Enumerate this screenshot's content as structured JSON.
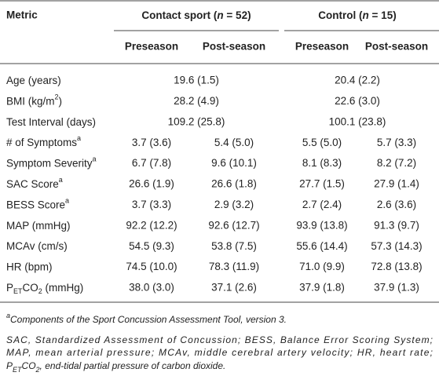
{
  "table": {
    "header": {
      "metric": "Metric",
      "groups": [
        [
          {
            "t": "Contact sport ("
          },
          {
            "t": "n",
            "style": "italic"
          },
          {
            "t": " = 52)"
          }
        ],
        [
          {
            "t": "Control ("
          },
          {
            "t": "n",
            "style": "italic"
          },
          {
            "t": " = 15)"
          }
        ]
      ],
      "subheaders": [
        "Preseason",
        "Post-season",
        "Preseason",
        "Post-season"
      ]
    },
    "rows": [
      {
        "label": [
          {
            "t": "Age (years)"
          }
        ],
        "values": [
          "19.6 (1.5)",
          "20.4 (2.2)"
        ]
      },
      {
        "label": [
          {
            "t": "BMI (kg/m"
          },
          {
            "t": "2",
            "style": "sup"
          },
          {
            "t": ")"
          }
        ],
        "values": [
          "28.2 (4.9)",
          "22.6 (3.0)"
        ]
      },
      {
        "label": [
          {
            "t": "Test Interval (days)"
          }
        ],
        "values": [
          "109.2 (25.8)",
          "100.1 (23.8)"
        ]
      },
      {
        "label": [
          {
            "t": "# of Symptoms"
          },
          {
            "t": "a",
            "style": "sup"
          }
        ],
        "values": [
          "3.7 (3.6)",
          "5.4 (5.0)",
          "5.5 (5.0)",
          "5.7 (3.3)"
        ]
      },
      {
        "label": [
          {
            "t": "Symptom Severity"
          },
          {
            "t": "a",
            "style": "sup"
          }
        ],
        "values": [
          "6.7 (7.8)",
          "9.6 (10.1)",
          "8.1 (8.3)",
          "8.2 (7.2)"
        ]
      },
      {
        "label": [
          {
            "t": "SAC Score"
          },
          {
            "t": "a",
            "style": "sup"
          }
        ],
        "values": [
          "26.6 (1.9)",
          "26.6 (1.8)",
          "27.7 (1.5)",
          "27.9 (1.4)"
        ]
      },
      {
        "label": [
          {
            "t": "BESS Score"
          },
          {
            "t": "a",
            "style": "sup"
          }
        ],
        "values": [
          "3.7 (3.3)",
          "2.9 (3.2)",
          "2.7 (2.4)",
          "2.6 (3.6)"
        ]
      },
      {
        "label": [
          {
            "t": "MAP (mmHg)"
          }
        ],
        "values": [
          "92.2 (12.2)",
          "92.6 (12.7)",
          "93.9 (13.8)",
          "91.3 (9.7)"
        ]
      },
      {
        "label": [
          {
            "t": "MCAv (cm/s)"
          }
        ],
        "values": [
          "54.5 (9.3)",
          "53.8 (7.5)",
          "55.6 (14.4)",
          "57.3 (14.3)"
        ]
      },
      {
        "label": [
          {
            "t": "HR (bpm)"
          }
        ],
        "values": [
          "74.5 (10.0)",
          "78.3 (11.9)",
          "71.0 (9.9)",
          "72.8 (13.8)"
        ]
      },
      {
        "label": [
          {
            "t": "P"
          },
          {
            "t": "ET",
            "style": "sub"
          },
          {
            "t": "CO"
          },
          {
            "t": "2",
            "style": "sub"
          },
          {
            "t": " (mmHg)"
          }
        ],
        "values": [
          "38.0 (3.0)",
          "37.1 (2.6)",
          "37.9 (1.8)",
          "37.9 (1.3)"
        ]
      }
    ]
  },
  "footnotes": [
    [
      {
        "t": "a",
        "style": "sup"
      },
      {
        "t": "Components of the Sport Concussion Assessment Tool, version 3."
      }
    ],
    [
      {
        "t": "SAC, Standardized Assessment of Concussion; BESS, Balance Error Scoring System;"
      }
    ],
    [
      {
        "t": "MAP, mean arterial pressure; MCAv, middle cerebral artery velocity; HR, heart rate;"
      }
    ],
    [
      {
        "t": "P"
      },
      {
        "t": "ET",
        "style": "sub"
      },
      {
        "t": "CO"
      },
      {
        "t": "2",
        "style": "sub"
      },
      {
        "t": ", end-tidal partial pressure of carbon dioxide."
      }
    ]
  ]
}
